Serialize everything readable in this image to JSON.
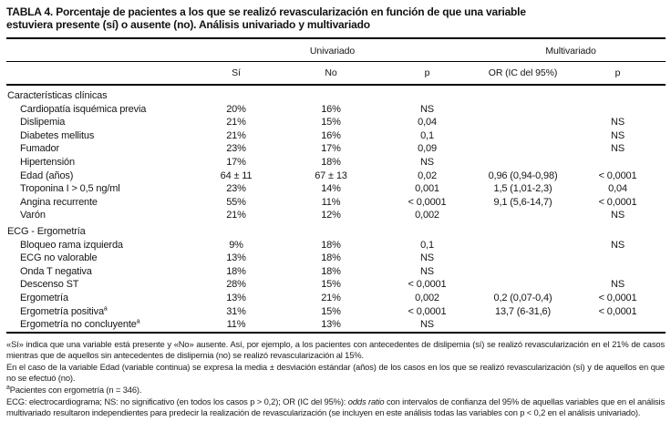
{
  "title": {
    "line1": "TABLA 4. Porcentaje de pacientes a los que se realizó revascularización en función de que una variable",
    "line2": "estuviera presente (sí) o ausente (no). Análisis univariado y multivariado"
  },
  "table": {
    "group_headers": {
      "univariado": "Univariado",
      "multivariado": "Multivariado"
    },
    "columns": [
      "Sí",
      "No",
      "p",
      "OR (IC del 95%)",
      "p"
    ],
    "sections": [
      {
        "label": "Características clínicas",
        "rows": [
          {
            "label": "Cardiopatía isquémica previa",
            "si": "20%",
            "no": "16%",
            "p_uni": "NS",
            "or": "",
            "p_multi": ""
          },
          {
            "label": "Dislipemia",
            "si": "21%",
            "no": "15%",
            "p_uni": "0,04",
            "or": "",
            "p_multi": "NS"
          },
          {
            "label": "Diabetes mellitus",
            "si": "21%",
            "no": "16%",
            "p_uni": "0,1",
            "or": "",
            "p_multi": "NS"
          },
          {
            "label": "Fumador",
            "si": "23%",
            "no": "17%",
            "p_uni": "0,09",
            "or": "",
            "p_multi": "NS"
          },
          {
            "label": "Hipertensión",
            "si": "17%",
            "no": "18%",
            "p_uni": "NS",
            "or": "",
            "p_multi": ""
          },
          {
            "label": "Edad (años)",
            "si": "64 ± 11",
            "no": "67 ± 13",
            "p_uni": "0,02",
            "or": "0,96 (0,94-0,98)",
            "p_multi": "< 0,0001"
          },
          {
            "label": "Troponina I > 0,5 ng/ml",
            "si": "23%",
            "no": "14%",
            "p_uni": "0,001",
            "or": "1,5 (1,01-2,3)",
            "p_multi": "0,04"
          },
          {
            "label": "Angina recurrente",
            "si": "55%",
            "no": "11%",
            "p_uni": "< 0,0001",
            "or": "9,1 (5,6-14,7)",
            "p_multi": "< 0,0001"
          },
          {
            "label": "Varón",
            "si": "21%",
            "no": "12%",
            "p_uni": "0,002",
            "or": "",
            "p_multi": "NS"
          }
        ]
      },
      {
        "label": "ECG - Ergometría",
        "rows": [
          {
            "label": "Bloqueo rama izquierda",
            "si": "9%",
            "no": "18%",
            "p_uni": "0,1",
            "or": "",
            "p_multi": "NS"
          },
          {
            "label": "ECG no valorable",
            "si": "13%",
            "no": "18%",
            "p_uni": "NS",
            "or": "",
            "p_multi": ""
          },
          {
            "label": "Onda T negativa",
            "si": "18%",
            "no": "18%",
            "p_uni": "NS",
            "or": "",
            "p_multi": ""
          },
          {
            "label": "Descenso ST",
            "si": "28%",
            "no": "15%",
            "p_uni": "< 0,0001",
            "or": "",
            "p_multi": "NS"
          },
          {
            "label": "Ergometría",
            "si": "13%",
            "no": "21%",
            "p_uni": "0,002",
            "or": "0,2 (0,07-0,4)",
            "p_multi": "< 0,0001"
          },
          {
            "label": "Ergometría positiva",
            "label_sup": "a",
            "si": "31%",
            "no": "15%",
            "p_uni": "< 0,0001",
            "or": "13,7 (6-31,6)",
            "p_multi": "< 0,0001"
          },
          {
            "label": "Ergometría no concluyente",
            "label_sup": "a",
            "si": "11%",
            "no": "13%",
            "p_uni": "NS",
            "or": "",
            "p_multi": ""
          }
        ]
      }
    ]
  },
  "footnotes": [
    {
      "sup": "",
      "text": "«Sí» indica que una variable está presente y «No» ausente. Así, por ejemplo, a los pacientes con antecedentes de dislipemia (sí) se realizó revascularización en el 21% de casos mientras que de aquellos sin antecedentes de dislipemia (no) se realizó revascularización al 15%."
    },
    {
      "sup": "",
      "text": "En el caso de la variable Edad (variable continua) se expresa la media ± desviación estándar (años) de los casos en los que se realizó revascularización (sí) y de aquellos en que no se efectuó (no)."
    },
    {
      "sup": "a",
      "text": "Pacientes con ergometría (n = 346)."
    },
    {
      "sup": "",
      "text_before_italic": "ECG: electrocardiograma; NS: no significativo (en todos los casos p > 0,2); OR (IC del 95%): ",
      "italic": "odds ratio",
      "text_after_italic": " con intervalos de confianza del 95% de aquellas variables que en el análisis multivariado resultaron independientes para predecir la realización de revascularización (se incluyen en este análisis todas las variables con p < 0,2 en el análisis univariado)."
    }
  ]
}
